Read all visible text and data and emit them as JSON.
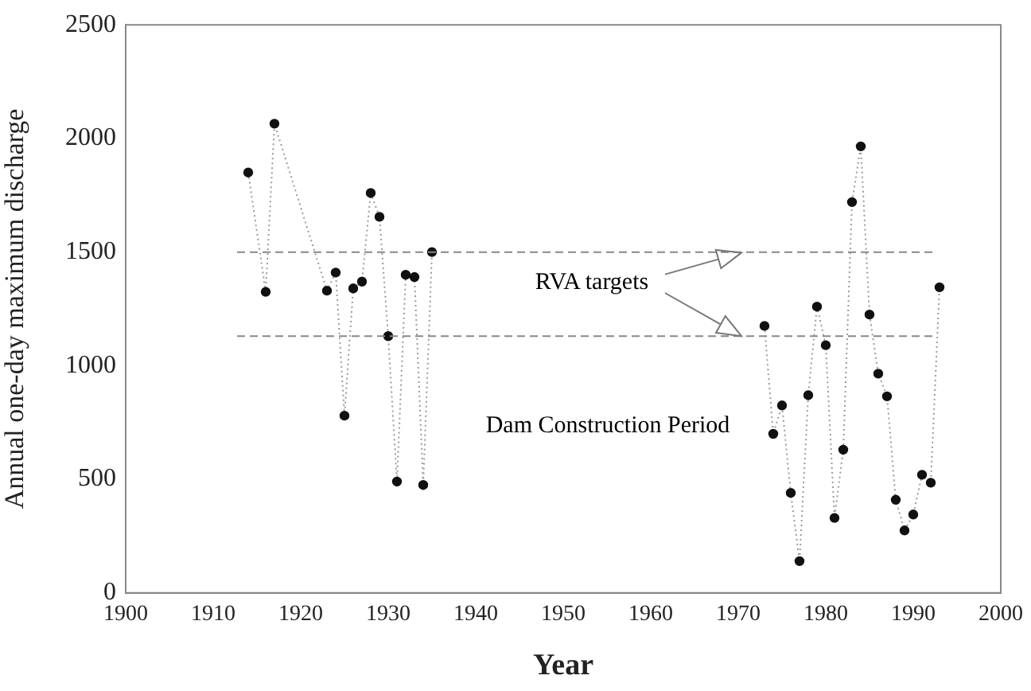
{
  "chart_data": {
    "type": "line",
    "xlabel": "Year",
    "ylabel": "Annual one-day maximum discharge",
    "xlim": [
      1900,
      2000
    ],
    "xticks": [
      1900,
      1910,
      1920,
      1930,
      1940,
      1950,
      1960,
      1970,
      1980,
      1990,
      2000
    ],
    "ylim": [
      0,
      2500
    ],
    "yticks": [
      0,
      500,
      1000,
      1500,
      2000,
      2500
    ],
    "grid": false,
    "legend": false,
    "marker": "circle",
    "line_style": "dotted",
    "annotations": [
      "RVA targets",
      "Dam Construction Period"
    ],
    "ref_lines": [
      {
        "axis": "y",
        "value": 1500,
        "color": "#888888",
        "line_style": "dashed"
      },
      {
        "axis": "y",
        "value": 1130,
        "color": "#888888",
        "line_style": "dashed"
      }
    ],
    "series": [
      {
        "color": "#111111",
        "x": [
          1914,
          1916,
          1917,
          1923,
          1924,
          1925,
          1926,
          1927,
          1928,
          1929,
          1930,
          1931,
          1932,
          1933,
          1934,
          1935,
          1950,
          1973,
          1974,
          1975,
          1976,
          1977,
          1978,
          1979,
          1980,
          1981,
          1982,
          1983,
          1984,
          1985,
          1986,
          1987,
          1988,
          1989,
          1990,
          1991,
          1992,
          1993
        ],
        "values": [
          1850,
          1325,
          2065,
          1330,
          1410,
          780,
          1340,
          1370,
          1760,
          1655,
          1130,
          490,
          1400,
          1390,
          475,
          1500,
          null,
          1175,
          700,
          825,
          440,
          140,
          870,
          1260,
          1090,
          330,
          630,
          1720,
          1965,
          1225,
          965,
          865,
          410,
          275,
          345,
          520,
          485,
          1345
        ]
      }
    ]
  }
}
